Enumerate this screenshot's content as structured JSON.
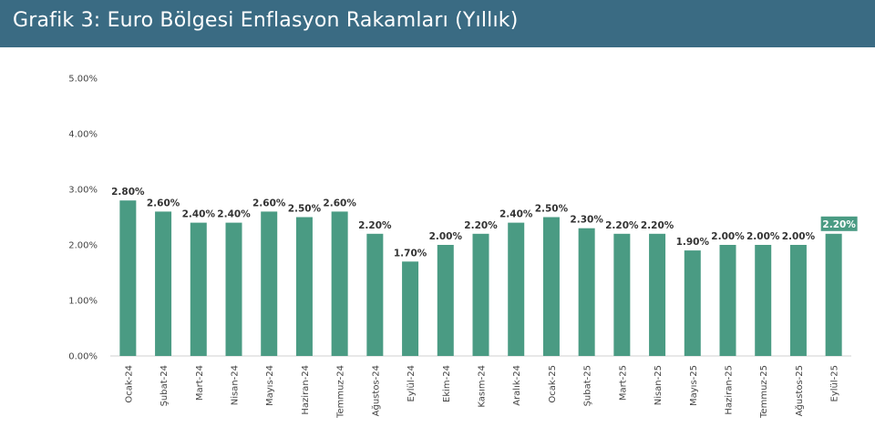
{
  "header": {
    "title": "Grafik 3:  Euro Bölgesi Enflasyon Rakamları (Yıllık)"
  },
  "colors": {
    "banner": "#3a6b83",
    "bar": "#4a9b83",
    "highlight_label_bg": "#4a9b83"
  },
  "chart_data": {
    "type": "bar",
    "categories": [
      "Ocak-24",
      "Şubat-24",
      "Mart-24",
      "Nisan-24",
      "Mayıs-24",
      "Haziran-24",
      "Temmuz-24",
      "Ağustos-24",
      "Eylül-24",
      "Ekim-24",
      "Kasım-24",
      "Aralık-24",
      "Ocak-25",
      "Şubat-25",
      "Mart-25",
      "Nisan-25",
      "Mayıs-25",
      "Haziran-25",
      "Temmuz-25",
      "Ağustos-25",
      "Eylül-25"
    ],
    "values": [
      2.8,
      2.6,
      2.4,
      2.4,
      2.6,
      2.5,
      2.6,
      2.2,
      1.7,
      2.0,
      2.2,
      2.4,
      2.5,
      2.3,
      2.2,
      2.2,
      1.9,
      2.0,
      2.0,
      2.0,
      2.2
    ],
    "value_labels": [
      "2.80%",
      "2.60%",
      "2.40%",
      "2.40%",
      "2.60%",
      "2.50%",
      "2.60%",
      "2.20%",
      "1.70%",
      "2.00%",
      "2.20%",
      "2.40%",
      "2.50%",
      "2.30%",
      "2.20%",
      "2.20%",
      "1.90%",
      "2.00%",
      "2.00%",
      "2.00%",
      "2.20%"
    ],
    "highlight_index": 20,
    "y_ticks": [
      "0.00%",
      "1.00%",
      "2.00%",
      "3.00%",
      "4.00%",
      "5.00%"
    ],
    "ylim": [
      0,
      5
    ],
    "grid": false
  }
}
